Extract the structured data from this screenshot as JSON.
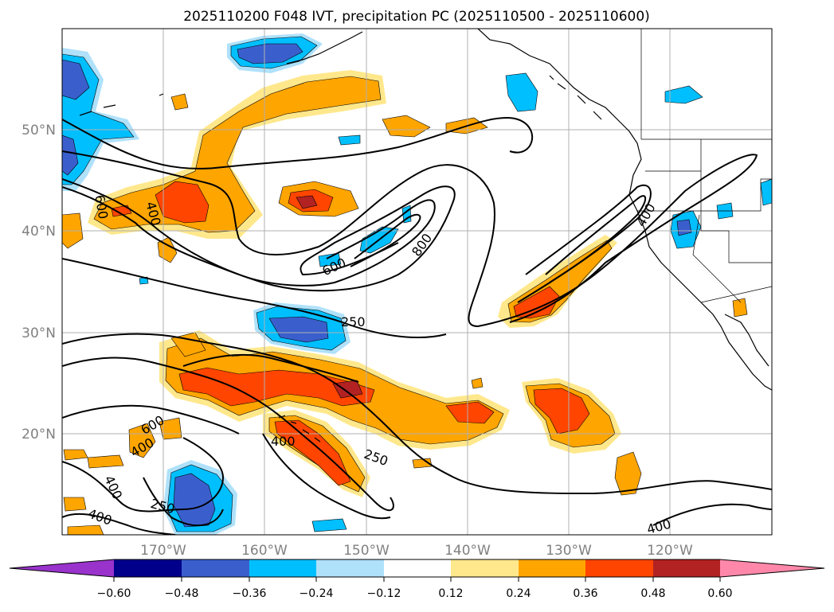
{
  "title": "2025110200 F048 IVT, precipitation PC (2025110500 - 2025110600)",
  "lat_labels": [
    "50°N",
    "40°N",
    "30°N",
    "20°N"
  ],
  "lon_labels": [
    "170°W",
    "160°W",
    "150°W",
    "140°W",
    "130°W",
    "120°W"
  ],
  "contour_labels": [
    "600",
    "400",
    "800",
    "600",
    "250",
    "400",
    "600",
    "400",
    "400",
    "250",
    "400",
    "250",
    "400",
    "400"
  ],
  "colorbar": {
    "ticks": [
      "−0.60",
      "−0.48",
      "−0.36",
      "−0.24",
      "−0.12",
      "0.12",
      "0.24",
      "0.36",
      "0.48",
      "0.60"
    ],
    "colors": [
      "#9933cc",
      "#00008b",
      "#3a5fcd",
      "#00bfff",
      "#afe1fa",
      "#ffffff",
      "#ffe88c",
      "#ffa500",
      "#ff4500",
      "#b22222",
      "#ff88aa"
    ]
  },
  "colors": {
    "pos_light": "#ffe88c",
    "pos_mid": "#ffa500",
    "pos_strong": "#ff4500",
    "pos_max": "#b22222",
    "neg_light": "#afe1fa",
    "neg_mid": "#00bfff",
    "neg_strong": "#3a5fcd",
    "grid": "#b0b0b0",
    "axis_label": "#808080"
  }
}
